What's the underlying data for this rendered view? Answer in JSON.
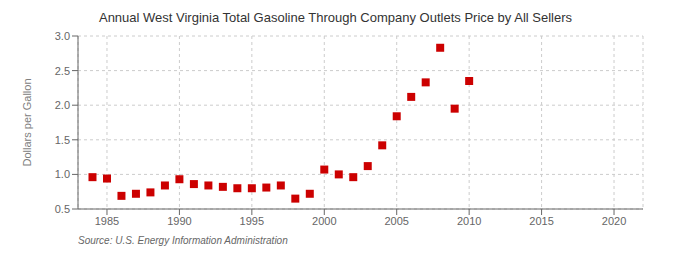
{
  "chart_data": {
    "type": "scatter",
    "title": "Annual West Virginia Total Gasoline Through Company Outlets Price by All Sellers",
    "ylabel": "Dollars per Gallon",
    "annotations": [
      "Source: U.S. Energy Information Administration"
    ],
    "x": [
      1984,
      1985,
      1986,
      1987,
      1988,
      1989,
      1990,
      1991,
      1992,
      1993,
      1994,
      1995,
      1996,
      1997,
      1998,
      1999,
      2000,
      2001,
      2002,
      2003,
      2004,
      2005,
      2006,
      2007,
      2008,
      2009,
      2010
    ],
    "values": [
      0.96,
      0.94,
      0.69,
      0.72,
      0.74,
      0.84,
      0.93,
      0.86,
      0.84,
      0.82,
      0.8,
      0.8,
      0.81,
      0.84,
      0.65,
      0.72,
      1.07,
      1.0,
      0.96,
      1.12,
      1.42,
      1.84,
      2.12,
      2.33,
      2.83,
      1.95,
      2.35
    ],
    "color": "#cc0000",
    "marker": "square",
    "xlim": [
      1983,
      2022
    ],
    "ylim": [
      0.5,
      3.0
    ],
    "xticks": [
      1985,
      1990,
      1995,
      2000,
      2005,
      2010,
      2015,
      2020
    ],
    "yticks": [
      0.5,
      {
        "value": 1.0,
        "label": "1.0"
      },
      1.5,
      {
        "value": 2.0,
        "label": "2.0"
      },
      2.5,
      {
        "value": 3.0,
        "label": "3.0"
      }
    ],
    "grid": true
  }
}
